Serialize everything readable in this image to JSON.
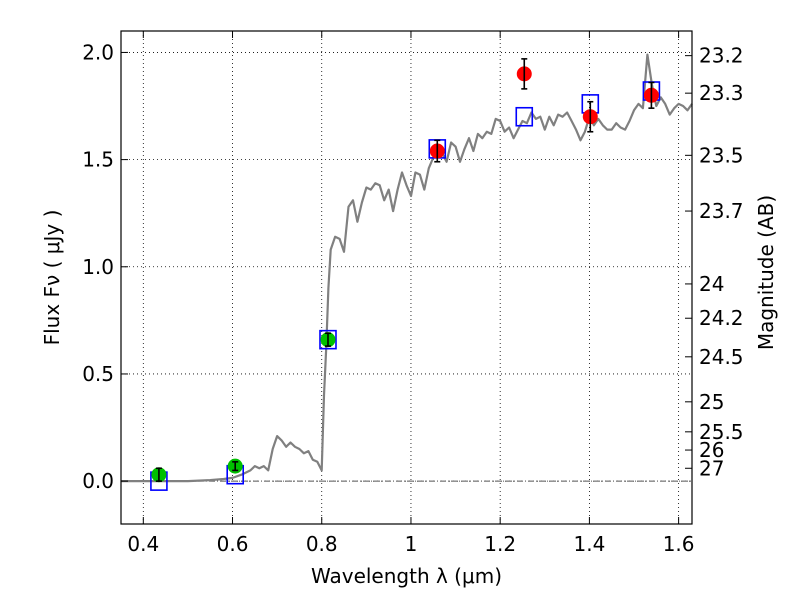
{
  "chart_data": {
    "type": "scatter",
    "xlabel": "Wavelength  λ (μm)",
    "ylabel": "Flux  Fν  ( μJy )",
    "y2label": "Magnitude (AB)",
    "xlim": [
      0.35,
      1.63
    ],
    "ylim": [
      -0.2,
      2.1
    ],
    "grid": true,
    "x_ticks": [
      {
        "value": 0.4,
        "label": "0.4"
      },
      {
        "value": 0.6,
        "label": "0.6"
      },
      {
        "value": 0.8,
        "label": "0.8"
      },
      {
        "value": 1.0,
        "label": "1"
      },
      {
        "value": 1.2,
        "label": "1.2"
      },
      {
        "value": 1.4,
        "label": "1.4"
      },
      {
        "value": 1.6,
        "label": "1.6"
      }
    ],
    "y_ticks": [
      {
        "value": 0.0,
        "label": "0.0"
      },
      {
        "value": 0.5,
        "label": "0.5"
      },
      {
        "value": 1.0,
        "label": "1.0"
      },
      {
        "value": 1.5,
        "label": "1.5"
      },
      {
        "value": 2.0,
        "label": "2.0"
      }
    ],
    "mag_ticks": [
      {
        "value": 1.985,
        "label": "23.2"
      },
      {
        "value": 1.81,
        "label": "23.3"
      },
      {
        "value": 1.52,
        "label": "23.5"
      },
      {
        "value": 1.26,
        "label": "23.7"
      },
      {
        "value": 0.92,
        "label": "24"
      },
      {
        "value": 0.76,
        "label": "24.2"
      },
      {
        "value": 0.58,
        "label": "24.5"
      },
      {
        "value": 0.37,
        "label": "25"
      },
      {
        "value": 0.23,
        "label": "25.5"
      },
      {
        "value": 0.145,
        "label": "26"
      },
      {
        "value": 0.06,
        "label": "27"
      }
    ],
    "sed_model": {
      "color": "#808080",
      "points": [
        [
          0.35,
          0.0
        ],
        [
          0.4,
          0.0
        ],
        [
          0.45,
          0.0
        ],
        [
          0.5,
          0.0
        ],
        [
          0.55,
          0.005
        ],
        [
          0.58,
          0.01
        ],
        [
          0.6,
          0.015
        ],
        [
          0.62,
          0.03
        ],
        [
          0.64,
          0.05
        ],
        [
          0.65,
          0.07
        ],
        [
          0.66,
          0.06
        ],
        [
          0.67,
          0.07
        ],
        [
          0.68,
          0.05
        ],
        [
          0.69,
          0.15
        ],
        [
          0.7,
          0.21
        ],
        [
          0.71,
          0.19
        ],
        [
          0.72,
          0.16
        ],
        [
          0.73,
          0.18
        ],
        [
          0.74,
          0.16
        ],
        [
          0.75,
          0.15
        ],
        [
          0.76,
          0.13
        ],
        [
          0.77,
          0.14
        ],
        [
          0.78,
          0.1
        ],
        [
          0.79,
          0.09
        ],
        [
          0.8,
          0.05
        ],
        [
          0.805,
          0.4
        ],
        [
          0.81,
          0.62
        ],
        [
          0.815,
          0.9
        ],
        [
          0.82,
          1.08
        ],
        [
          0.83,
          1.14
        ],
        [
          0.84,
          1.13
        ],
        [
          0.85,
          1.07
        ],
        [
          0.86,
          1.28
        ],
        [
          0.87,
          1.31
        ],
        [
          0.88,
          1.21
        ],
        [
          0.89,
          1.3
        ],
        [
          0.9,
          1.37
        ],
        [
          0.91,
          1.36
        ],
        [
          0.92,
          1.39
        ],
        [
          0.93,
          1.38
        ],
        [
          0.94,
          1.31
        ],
        [
          0.95,
          1.36
        ],
        [
          0.96,
          1.26
        ],
        [
          0.97,
          1.36
        ],
        [
          0.98,
          1.44
        ],
        [
          0.99,
          1.38
        ],
        [
          1.0,
          1.33
        ],
        [
          1.01,
          1.44
        ],
        [
          1.02,
          1.43
        ],
        [
          1.03,
          1.36
        ],
        [
          1.04,
          1.46
        ],
        [
          1.05,
          1.51
        ],
        [
          1.06,
          1.52
        ],
        [
          1.07,
          1.53
        ],
        [
          1.08,
          1.49
        ],
        [
          1.09,
          1.58
        ],
        [
          1.1,
          1.56
        ],
        [
          1.11,
          1.49
        ],
        [
          1.12,
          1.55
        ],
        [
          1.13,
          1.6
        ],
        [
          1.14,
          1.54
        ],
        [
          1.15,
          1.62
        ],
        [
          1.16,
          1.6
        ],
        [
          1.17,
          1.63
        ],
        [
          1.18,
          1.62
        ],
        [
          1.19,
          1.69
        ],
        [
          1.2,
          1.68
        ],
        [
          1.21,
          1.63
        ],
        [
          1.22,
          1.65
        ],
        [
          1.23,
          1.6
        ],
        [
          1.24,
          1.64
        ],
        [
          1.25,
          1.68
        ],
        [
          1.26,
          1.67
        ],
        [
          1.27,
          1.72
        ],
        [
          1.28,
          1.69
        ],
        [
          1.29,
          1.7
        ],
        [
          1.3,
          1.64
        ],
        [
          1.31,
          1.7
        ],
        [
          1.32,
          1.66
        ],
        [
          1.33,
          1.71
        ],
        [
          1.34,
          1.7
        ],
        [
          1.35,
          1.72
        ],
        [
          1.36,
          1.68
        ],
        [
          1.37,
          1.64
        ],
        [
          1.38,
          1.59
        ],
        [
          1.39,
          1.63
        ],
        [
          1.4,
          1.7
        ],
        [
          1.41,
          1.66
        ],
        [
          1.42,
          1.69
        ],
        [
          1.43,
          1.66
        ],
        [
          1.44,
          1.64
        ],
        [
          1.45,
          1.64
        ],
        [
          1.46,
          1.67
        ],
        [
          1.47,
          1.65
        ],
        [
          1.48,
          1.64
        ],
        [
          1.49,
          1.68
        ],
        [
          1.5,
          1.73
        ],
        [
          1.51,
          1.76
        ],
        [
          1.52,
          1.74
        ],
        [
          1.53,
          1.99
        ],
        [
          1.54,
          1.85
        ],
        [
          1.55,
          1.75
        ],
        [
          1.56,
          1.79
        ],
        [
          1.57,
          1.76
        ],
        [
          1.58,
          1.71
        ],
        [
          1.59,
          1.74
        ],
        [
          1.6,
          1.76
        ],
        [
          1.61,
          1.75
        ],
        [
          1.62,
          1.73
        ],
        [
          1.63,
          1.76
        ]
      ]
    },
    "model_fluxes": [
      {
        "x": 0.435,
        "y": 0.0
      },
      {
        "x": 0.606,
        "y": 0.03
      },
      {
        "x": 0.814,
        "y": 0.66
      },
      {
        "x": 1.059,
        "y": 1.55
      },
      {
        "x": 1.254,
        "y": 1.7
      },
      {
        "x": 1.402,
        "y": 1.76
      },
      {
        "x": 1.539,
        "y": 1.82
      }
    ],
    "optical_photometry": [
      {
        "x": 0.435,
        "y": 0.03,
        "err": 0.03
      },
      {
        "x": 0.606,
        "y": 0.07,
        "err": 0.02
      },
      {
        "x": 0.814,
        "y": 0.66,
        "err": 0.03
      }
    ],
    "nir_photometry": [
      {
        "x": 1.059,
        "y": 1.54,
        "err": 0.05
      },
      {
        "x": 1.254,
        "y": 1.9,
        "err": 0.07
      },
      {
        "x": 1.402,
        "y": 1.7,
        "err": 0.07
      },
      {
        "x": 1.539,
        "y": 1.8,
        "err": 0.06
      }
    ],
    "colors": {
      "model_box": "#0000ff",
      "optical_point": "#00c000",
      "nir_point": "#ff0000",
      "error_bar": "#000000",
      "zero_line": "#555555",
      "grid": "#000000"
    }
  }
}
